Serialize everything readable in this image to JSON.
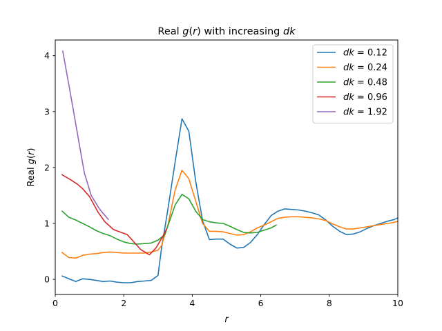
{
  "chart_data": {
    "type": "line",
    "title": "Real g(r) with increasing dk",
    "xlabel": "r",
    "ylabel": "Real g(r)",
    "xlim": [
      0,
      10
    ],
    "ylim": [
      -0.27,
      4.28
    ],
    "xticks": [
      0,
      2,
      4,
      6,
      8,
      10
    ],
    "yticks": [
      0,
      1,
      2,
      3,
      4
    ],
    "xticklabels": [
      "0",
      "2",
      "4",
      "6",
      "8",
      "10"
    ],
    "yticklabels": [
      "0",
      "1",
      "2",
      "3",
      "4"
    ],
    "grid": false,
    "legend_position": "top-right",
    "series": [
      {
        "name": "dk = 0.12",
        "color": "#1f77b4",
        "x": [
          0.2,
          0.4,
          0.6,
          0.8,
          1.0,
          1.2,
          1.4,
          1.6,
          1.8,
          2.0,
          2.2,
          2.4,
          2.6,
          2.8,
          3.0,
          3.1,
          3.3,
          3.5,
          3.7,
          3.9,
          4.1,
          4.3,
          4.5,
          4.7,
          4.9,
          5.1,
          5.3,
          5.5,
          5.7,
          5.9,
          6.1,
          6.3,
          6.5,
          6.7,
          6.9,
          7.1,
          7.3,
          7.5,
          7.7,
          7.9,
          8.1,
          8.3,
          8.5,
          8.7,
          8.9,
          9.1,
          9.3,
          9.5,
          9.7,
          9.9,
          10.0
        ],
        "y": [
          0.06,
          0.01,
          -0.04,
          0.01,
          0.0,
          -0.02,
          -0.04,
          -0.03,
          -0.05,
          -0.06,
          -0.06,
          -0.04,
          -0.03,
          -0.02,
          0.07,
          0.55,
          1.3,
          2.1,
          2.87,
          2.65,
          1.75,
          1.05,
          0.71,
          0.72,
          0.72,
          0.63,
          0.56,
          0.57,
          0.66,
          0.8,
          0.98,
          1.14,
          1.22,
          1.26,
          1.25,
          1.24,
          1.22,
          1.19,
          1.15,
          1.06,
          0.95,
          0.86,
          0.8,
          0.81,
          0.85,
          0.91,
          0.96,
          1.0,
          1.04,
          1.07,
          1.1
        ]
      },
      {
        "name": "dk = 0.24",
        "color": "#ff7f0e",
        "x": [
          0.2,
          0.4,
          0.6,
          0.8,
          1.0,
          1.2,
          1.4,
          1.6,
          1.8,
          2.0,
          2.2,
          2.4,
          2.6,
          2.8,
          3.0,
          3.1,
          3.3,
          3.5,
          3.7,
          3.9,
          4.1,
          4.3,
          4.5,
          4.7,
          4.9,
          5.1,
          5.3,
          5.5,
          5.7,
          5.9,
          6.1,
          6.3,
          6.5,
          6.7,
          6.9,
          7.1,
          7.3,
          7.5,
          7.7,
          7.9,
          8.1,
          8.3,
          8.5,
          8.7,
          8.9,
          9.1,
          9.3,
          9.5,
          9.7,
          9.9,
          10.0
        ],
        "y": [
          0.48,
          0.39,
          0.38,
          0.43,
          0.45,
          0.46,
          0.48,
          0.49,
          0.48,
          0.47,
          0.47,
          0.47,
          0.47,
          0.49,
          0.52,
          0.6,
          1.0,
          1.6,
          1.95,
          1.8,
          1.4,
          1.0,
          0.86,
          0.86,
          0.85,
          0.82,
          0.79,
          0.8,
          0.85,
          0.92,
          0.97,
          1.03,
          1.09,
          1.11,
          1.12,
          1.12,
          1.11,
          1.1,
          1.08,
          1.05,
          0.99,
          0.94,
          0.9,
          0.9,
          0.92,
          0.94,
          0.96,
          0.98,
          1.0,
          1.02,
          1.04
        ]
      },
      {
        "name": "dk = 0.48",
        "color": "#2ca02c",
        "x": [
          0.2,
          0.4,
          0.6,
          0.8,
          1.0,
          1.2,
          1.4,
          1.6,
          1.8,
          2.0,
          2.2,
          2.4,
          2.6,
          2.8,
          3.0,
          3.2,
          3.5,
          3.7,
          3.9,
          4.1,
          4.3,
          4.5,
          4.7,
          4.9,
          5.1,
          5.3,
          5.5,
          5.7,
          5.9,
          6.1,
          6.3,
          6.45
        ],
        "y": [
          1.22,
          1.11,
          1.06,
          1.0,
          0.94,
          0.87,
          0.82,
          0.78,
          0.72,
          0.67,
          0.64,
          0.63,
          0.64,
          0.65,
          0.7,
          0.8,
          1.33,
          1.52,
          1.44,
          1.22,
          1.07,
          1.03,
          1.01,
          1.0,
          0.95,
          0.89,
          0.84,
          0.83,
          0.84,
          0.88,
          0.92,
          0.97
        ]
      },
      {
        "name": "dk = 0.96",
        "color": "#d62728",
        "x": [
          0.2,
          0.45,
          0.65,
          0.8,
          1.0,
          1.25,
          1.45,
          1.7,
          2.1,
          2.5,
          2.75,
          2.95,
          3.15,
          3.25
        ],
        "y": [
          1.87,
          1.78,
          1.7,
          1.62,
          1.48,
          1.2,
          1.03,
          0.89,
          0.8,
          0.53,
          0.44,
          0.57,
          0.78,
          0.9
        ]
      },
      {
        "name": "dk = 1.92",
        "color": "#9467bd",
        "x": [
          0.22,
          0.45,
          0.65,
          0.85,
          1.05,
          1.3,
          1.55
        ],
        "y": [
          4.08,
          3.3,
          2.6,
          1.9,
          1.5,
          1.25,
          1.07
        ]
      }
    ]
  }
}
